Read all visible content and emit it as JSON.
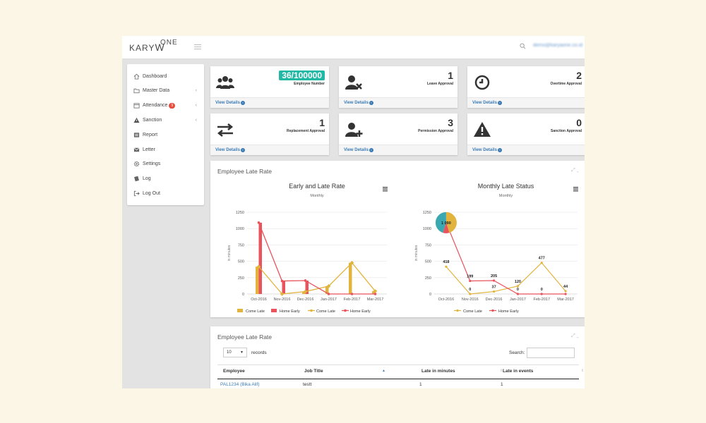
{
  "header": {
    "logo_main": "KARY",
    "logo_w": "W",
    "logo_one": "ONE",
    "user_email": "demo@karyaone.co.id"
  },
  "sidebar": {
    "items": [
      {
        "label": "Dashboard",
        "icon": "home-icon"
      },
      {
        "label": "Master Data",
        "icon": "folder-icon",
        "chevron": "‹"
      },
      {
        "label": "Attendance",
        "icon": "calendar-icon",
        "badge": "9",
        "chevron": "‹"
      },
      {
        "label": "Sanction",
        "icon": "warning-icon",
        "chevron": "‹"
      },
      {
        "label": "Report",
        "icon": "report-icon"
      },
      {
        "label": "Letter",
        "icon": "envelope-icon"
      },
      {
        "label": "Settings",
        "icon": "gear-icon"
      },
      {
        "label": "Log",
        "icon": "log-icon"
      },
      {
        "label": "Log Out",
        "icon": "logout-icon"
      }
    ]
  },
  "cards": [
    {
      "value": "36/100000",
      "label": "Employee Number",
      "icon": "users-icon",
      "link": "View Details"
    },
    {
      "value": "1",
      "label": "Leave Approval",
      "icon": "user-remove-icon",
      "link": "View Details"
    },
    {
      "value": "2",
      "label": "Overtime Approval",
      "icon": "clock-icon",
      "link": "View Details"
    },
    {
      "value": "1",
      "label": "Replacement Approval",
      "icon": "swap-icon",
      "link": "View Details"
    },
    {
      "value": "3",
      "label": "Permission Approval",
      "icon": "user-add-icon",
      "link": "View Details"
    },
    {
      "value": "0",
      "label": "Sanction Approval",
      "icon": "warning-icon",
      "link": "View Details"
    }
  ],
  "chart_panel": {
    "title": "Employee Late Rate"
  },
  "chart_data": [
    {
      "type": "bar",
      "title": "Early and Late Rate",
      "subtitle": "Monthly",
      "ylabel": "in minutes",
      "ylim": [
        0,
        1250
      ],
      "yticks": [
        0,
        250,
        500,
        750,
        1000,
        1250
      ],
      "categories": [
        "Oct-2016",
        "Nov-2016",
        "Dec-2016",
        "Jan-2017",
        "Feb-2017",
        "Mar-2017"
      ],
      "series": [
        {
          "name": "Come Late",
          "kind": "bar",
          "color": "#e2b43e",
          "values": [
            418,
            0,
            37,
            120,
            477,
            44
          ]
        },
        {
          "name": "Home Early",
          "kind": "bar",
          "color": "#e8535c",
          "values": [
            1090,
            199,
            205,
            0,
            0,
            0
          ]
        },
        {
          "name": "Come Late",
          "kind": "line",
          "color": "#e2b43e",
          "values": [
            418,
            0,
            37,
            120,
            477,
            44
          ]
        },
        {
          "name": "Home Early",
          "kind": "line",
          "color": "#e8535c",
          "values": [
            1090,
            199,
            205,
            0,
            0,
            0
          ]
        }
      ],
      "legend": "bottom"
    },
    {
      "type": "line",
      "title": "Monthly Late Status",
      "subtitle": "Monthly",
      "ylabel": "in minutes",
      "ylim": [
        0,
        1250
      ],
      "yticks": [
        0,
        250,
        500,
        750,
        1000,
        1250
      ],
      "categories": [
        "Oct-2016",
        "Nov-2016",
        "Dec-2016",
        "Jan-2017",
        "Feb-2017",
        "Mar-2017"
      ],
      "series": [
        {
          "name": "Come Late",
          "color": "#e2b43e",
          "values": [
            418,
            0,
            37,
            120,
            477,
            44
          ],
          "labels": [
            "418",
            "0",
            "37",
            "120",
            "477",
            "44"
          ]
        },
        {
          "name": "Home Early",
          "color": "#e8535c",
          "values": [
            1090,
            199,
            205,
            0,
            0,
            0
          ],
          "labels": [
            "1 090",
            "199",
            "205",
            "0",
            "0",
            ""
          ]
        }
      ],
      "pie": {
        "label": "1 090",
        "slices": [
          {
            "value": 45,
            "color": "#e2b43e"
          },
          {
            "value": 10,
            "color": "#e8535c"
          },
          {
            "value": 45,
            "color": "#3aa8b0"
          }
        ]
      },
      "legend": "bottom"
    }
  ],
  "table_panel": {
    "title": "Employee Late Rate",
    "page_size": "10",
    "records_label": "records",
    "search_label": "Search:",
    "columns": [
      "Employee",
      "Job Title",
      "Late in minutes",
      "Late in events"
    ],
    "rows": [
      {
        "employee": "PAL1234 (Bika Alif)",
        "job_title": "testt",
        "late_minutes": "1",
        "late_events": "1"
      }
    ]
  },
  "colors": {
    "accent": "#21b8a6",
    "link": "#3c7bb5",
    "come_late": "#e2b43e",
    "home_early": "#e8535c"
  }
}
